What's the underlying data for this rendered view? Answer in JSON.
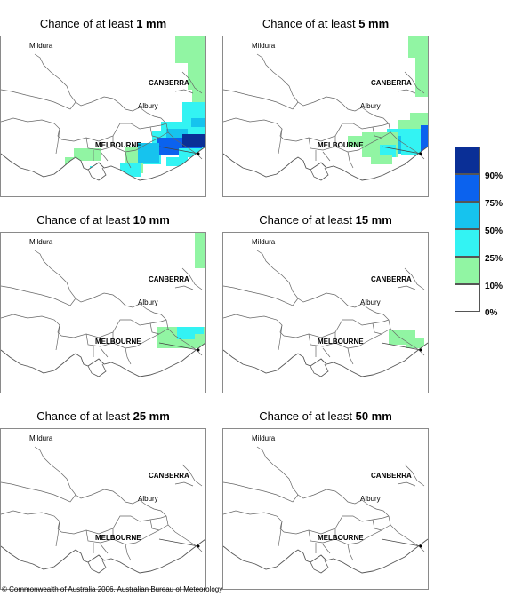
{
  "panels": [
    {
      "prefix": "Chance of at least ",
      "amount": "1 mm",
      "level": 1
    },
    {
      "prefix": "Chance of at least ",
      "amount": "5 mm",
      "level": 5
    },
    {
      "prefix": "Chance of at least ",
      "amount": "10 mm",
      "level": 10
    },
    {
      "prefix": "Chance of at least ",
      "amount": "15 mm",
      "level": 15
    },
    {
      "prefix": "Chance of at least ",
      "amount": "25 mm",
      "level": 25
    },
    {
      "prefix": "Chance of at least ",
      "amount": "50 mm",
      "level": 50
    }
  ],
  "places": {
    "mildura": "Mildura",
    "canberra": "CANBERRA",
    "albury": "Albury",
    "melbourne": "MELBOURNE"
  },
  "legend": {
    "labels": [
      "90%",
      "75%",
      "50%",
      "25%",
      "10%",
      "0%"
    ],
    "colors": [
      "#0a2f96",
      "#0b62ee",
      "#16c3ee",
      "#33f3f3",
      "#91f5a3",
      "#ffffff"
    ]
  },
  "copyright": "© Commonwealth of Australia 2006, Australian Bureau of Meteorology"
}
